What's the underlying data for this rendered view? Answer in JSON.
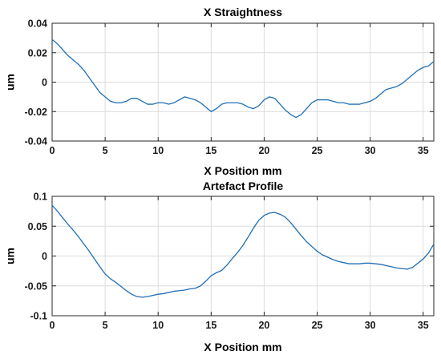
{
  "figure": {
    "background": "#ffffff"
  },
  "chart_data": [
    {
      "type": "line",
      "title": "X Straightness",
      "xlabel": "X Position mm",
      "ylabel": "um",
      "xlim": [
        0,
        36
      ],
      "ylim": [
        -0.04,
        0.04
      ],
      "xticks": [
        0,
        5,
        10,
        15,
        20,
        25,
        30,
        35
      ],
      "yticks": [
        -0.04,
        -0.02,
        0,
        0.02,
        0.04
      ],
      "xtick_labels": [
        "0",
        "5",
        "10",
        "15",
        "20",
        "25",
        "30",
        "35"
      ],
      "ytick_labels": [
        "-0.04",
        "-0.02",
        "0",
        "0.02",
        "0.04"
      ],
      "grid": true,
      "color": "#1f6fb4",
      "series": [
        {
          "x": [
            0,
            0.5,
            1,
            1.5,
            2,
            2.5,
            3,
            3.5,
            4,
            4.5,
            5,
            5.5,
            6,
            6.5,
            7,
            7.5,
            8,
            8.5,
            9,
            9.5,
            10,
            10.5,
            11,
            11.5,
            12,
            12.5,
            13,
            13.5,
            14,
            14.5,
            15,
            15.5,
            16,
            16.5,
            17,
            17.5,
            18,
            18.5,
            19,
            19.5,
            20,
            20.5,
            21,
            21.5,
            22,
            22.5,
            23,
            23.5,
            24,
            24.5,
            25,
            25.5,
            26,
            26.5,
            27,
            27.5,
            28,
            28.5,
            29,
            29.5,
            30,
            30.5,
            31,
            31.5,
            32,
            32.5,
            33,
            33.5,
            34,
            34.5,
            35,
            35.5,
            36
          ],
          "y": [
            0.029,
            0.026,
            0.022,
            0.018,
            0.015,
            0.012,
            0.008,
            0.003,
            -0.002,
            -0.007,
            -0.01,
            -0.013,
            -0.014,
            -0.014,
            -0.013,
            -0.011,
            -0.011,
            -0.013,
            -0.015,
            -0.015,
            -0.014,
            -0.014,
            -0.015,
            -0.014,
            -0.012,
            -0.01,
            -0.011,
            -0.012,
            -0.014,
            -0.017,
            -0.02,
            -0.018,
            -0.015,
            -0.014,
            -0.014,
            -0.014,
            -0.015,
            -0.017,
            -0.018,
            -0.016,
            -0.012,
            -0.01,
            -0.011,
            -0.015,
            -0.019,
            -0.022,
            -0.024,
            -0.022,
            -0.018,
            -0.014,
            -0.012,
            -0.012,
            -0.012,
            -0.013,
            -0.014,
            -0.014,
            -0.015,
            -0.015,
            -0.015,
            -0.014,
            -0.013,
            -0.011,
            -0.008,
            -0.005,
            -0.004,
            -0.003,
            -0.001,
            0.002,
            0.005,
            0.008,
            0.01,
            0.011,
            0.014
          ]
        }
      ]
    },
    {
      "type": "line",
      "title": "Artefact Profile",
      "xlabel": "X Position mm",
      "ylabel": "um",
      "xlim": [
        0,
        36
      ],
      "ylim": [
        -0.1,
        0.1
      ],
      "xticks": [
        0,
        5,
        10,
        15,
        20,
        25,
        30,
        35
      ],
      "yticks": [
        -0.1,
        -0.05,
        0,
        0.05,
        0.1
      ],
      "xtick_labels": [
        "0",
        "5",
        "10",
        "15",
        "20",
        "25",
        "30",
        "35"
      ],
      "ytick_labels": [
        "-0.1",
        "-0.05",
        "0",
        "0.05",
        "0.1"
      ],
      "grid": true,
      "color": "#1f6fb4",
      "series": [
        {
          "x": [
            0,
            0.5,
            1,
            1.5,
            2,
            2.5,
            3,
            3.5,
            4,
            4.5,
            5,
            5.5,
            6,
            6.5,
            7,
            7.5,
            8,
            8.5,
            9,
            9.5,
            10,
            10.5,
            11,
            11.5,
            12,
            12.5,
            13,
            13.5,
            14,
            14.5,
            15,
            15.5,
            16,
            16.5,
            17,
            17.5,
            18,
            18.5,
            19,
            19.5,
            20,
            20.5,
            21,
            21.5,
            22,
            22.5,
            23,
            23.5,
            24,
            24.5,
            25,
            25.5,
            26,
            26.5,
            27,
            27.5,
            28,
            28.5,
            29,
            29.5,
            30,
            30.5,
            31,
            31.5,
            32,
            32.5,
            33,
            33.5,
            34,
            34.5,
            35,
            35.5,
            36
          ],
          "y": [
            0.085,
            0.075,
            0.064,
            0.053,
            0.043,
            0.032,
            0.02,
            0.008,
            -0.005,
            -0.018,
            -0.03,
            -0.038,
            -0.044,
            -0.051,
            -0.058,
            -0.064,
            -0.068,
            -0.069,
            -0.068,
            -0.066,
            -0.064,
            -0.063,
            -0.061,
            -0.059,
            -0.058,
            -0.057,
            -0.055,
            -0.054,
            -0.05,
            -0.042,
            -0.033,
            -0.028,
            -0.024,
            -0.015,
            -0.004,
            0.006,
            0.018,
            0.032,
            0.047,
            0.06,
            0.068,
            0.072,
            0.073,
            0.07,
            0.065,
            0.056,
            0.045,
            0.034,
            0.024,
            0.016,
            0.008,
            0.002,
            -0.002,
            -0.006,
            -0.009,
            -0.011,
            -0.013,
            -0.013,
            -0.013,
            -0.012,
            -0.012,
            -0.013,
            -0.014,
            -0.016,
            -0.018,
            -0.02,
            -0.021,
            -0.022,
            -0.019,
            -0.012,
            -0.005,
            0.005,
            0.02
          ]
        }
      ]
    }
  ]
}
